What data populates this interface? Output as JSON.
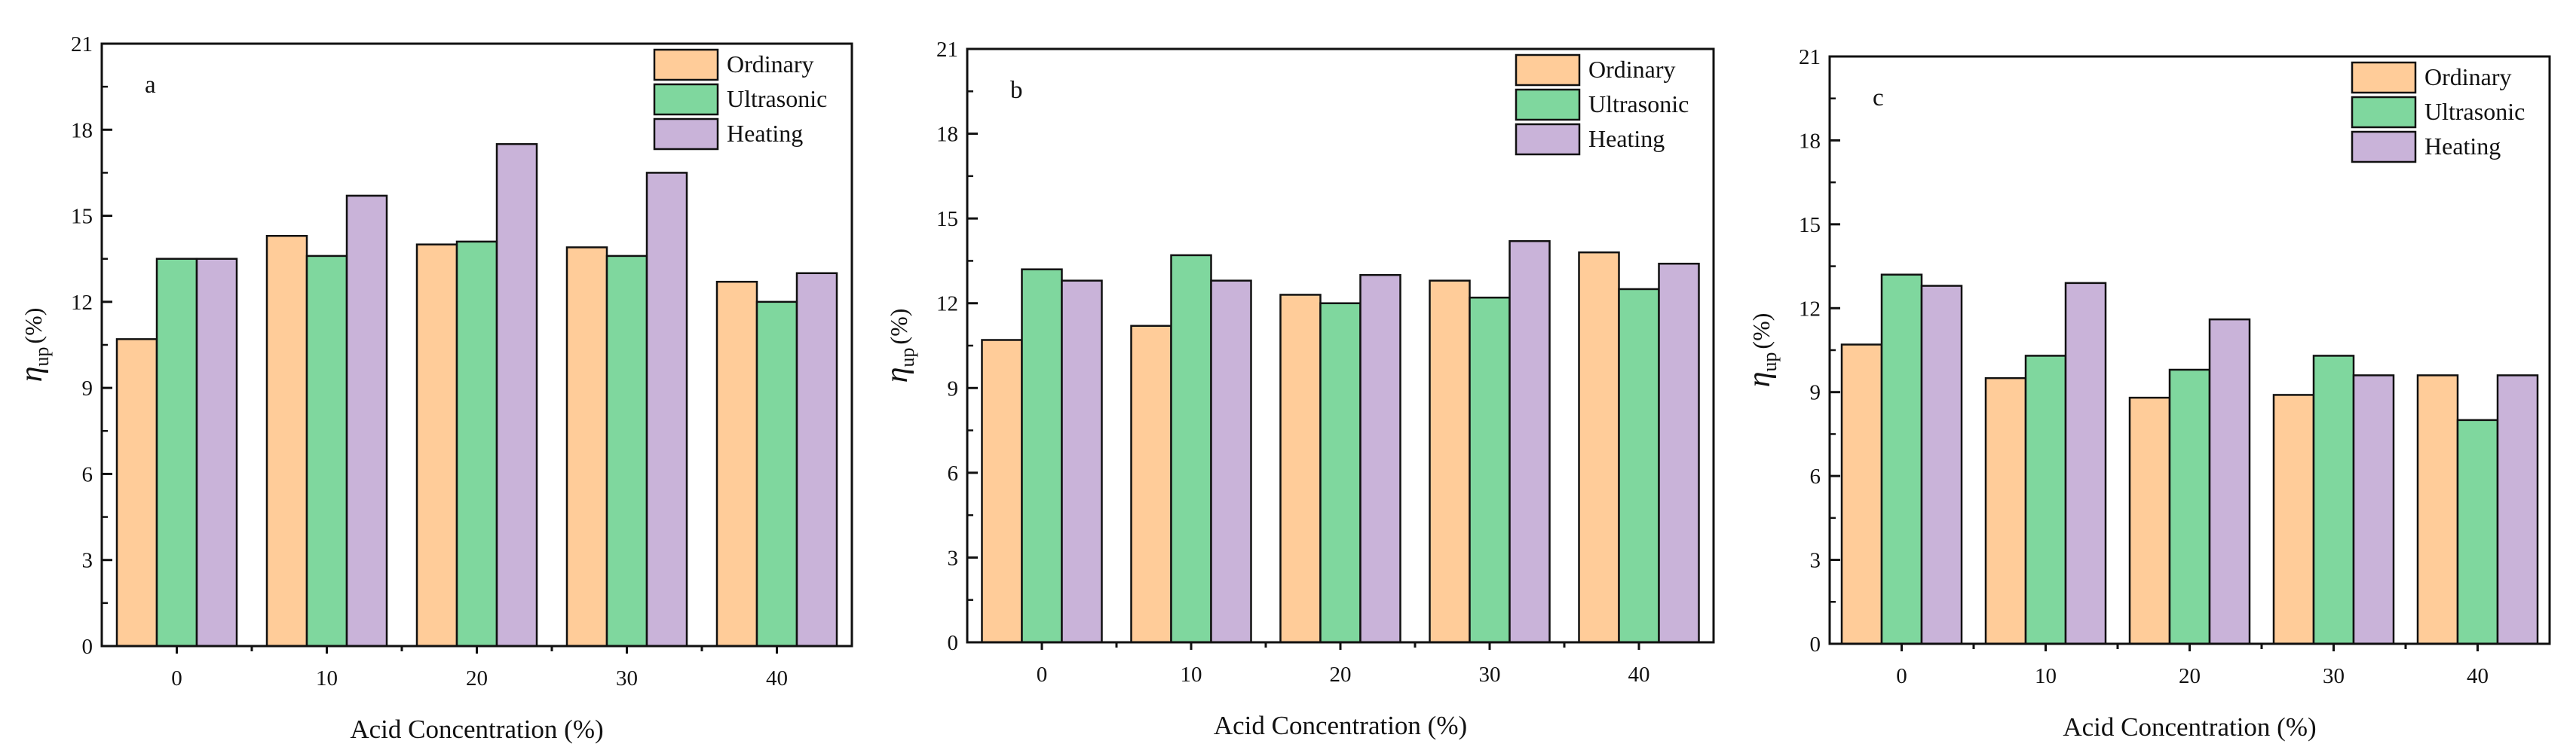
{
  "series_colors": {
    "Ordinary": "#ffcc99",
    "Ultrasonic": "#7fd79e",
    "Heating": "#c9b3d9"
  },
  "chart_data": [
    {
      "type": "bar",
      "panel_label": "a",
      "categories": [
        "0",
        "10",
        "20",
        "30",
        "40"
      ],
      "series": [
        {
          "name": "Ordinary",
          "values": [
            10.7,
            14.3,
            14.0,
            13.9,
            12.7
          ]
        },
        {
          "name": "Ultrasonic",
          "values": [
            13.5,
            13.6,
            14.1,
            13.6,
            12.0
          ]
        },
        {
          "name": "Heating",
          "values": [
            13.5,
            15.7,
            17.5,
            16.5,
            13.0
          ]
        }
      ],
      "xlabel": "Acid Concentration (%)",
      "ylabel_symbol": "η",
      "ylabel_subscript": "up",
      "ylabel_unit": "(%)",
      "ylim": [
        0,
        21
      ],
      "yticks": [
        "0",
        "3",
        "6",
        "9",
        "12",
        "15",
        "18",
        "21"
      ],
      "legend": "top-right"
    },
    {
      "type": "bar",
      "panel_label": "b",
      "categories": [
        "0",
        "10",
        "20",
        "30",
        "40"
      ],
      "series": [
        {
          "name": "Ordinary",
          "values": [
            10.7,
            11.2,
            12.3,
            12.8,
            13.8
          ]
        },
        {
          "name": "Ultrasonic",
          "values": [
            13.2,
            13.7,
            12.0,
            12.2,
            12.5
          ]
        },
        {
          "name": "Heating",
          "values": [
            12.8,
            12.8,
            13.0,
            14.2,
            13.4
          ]
        }
      ],
      "xlabel": "Acid Concentration (%)",
      "ylabel_symbol": "η",
      "ylabel_subscript": "up",
      "ylabel_unit": "(%)",
      "ylim": [
        0,
        21
      ],
      "yticks": [
        "0",
        "3",
        "6",
        "9",
        "12",
        "15",
        "18",
        "21"
      ],
      "legend": "top-right"
    },
    {
      "type": "bar",
      "panel_label": "c",
      "categories": [
        "0",
        "10",
        "20",
        "30",
        "40"
      ],
      "series": [
        {
          "name": "Ordinary",
          "values": [
            10.7,
            9.5,
            8.8,
            8.9,
            9.6
          ]
        },
        {
          "name": "Ultrasonic",
          "values": [
            13.2,
            10.3,
            9.8,
            10.3,
            8.0
          ]
        },
        {
          "name": "Heating",
          "values": [
            12.8,
            12.9,
            11.6,
            9.6,
            9.6
          ]
        }
      ],
      "xlabel": "Acid Concentration (%)",
      "ylabel_symbol": "η",
      "ylabel_subscript": "up",
      "ylabel_unit": "(%)",
      "ylim": [
        0,
        21
      ],
      "yticks": [
        "0",
        "3",
        "6",
        "9",
        "12",
        "15",
        "18",
        "21"
      ],
      "legend": "top-right"
    }
  ]
}
